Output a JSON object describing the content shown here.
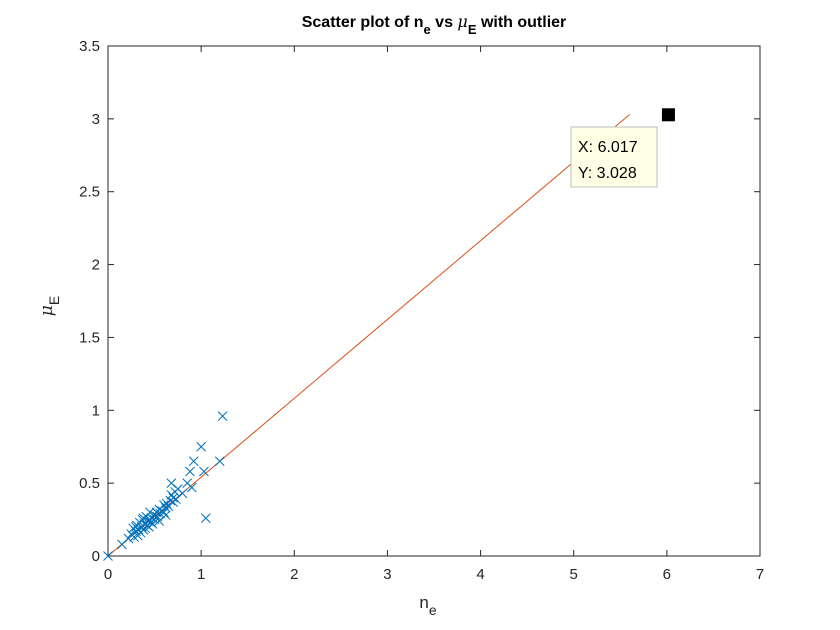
{
  "chart_data": {
    "type": "scatter",
    "title": "Scatter plot of n_e vs μ_E with outlier",
    "xlabel": "n_e",
    "ylabel": "μ_E",
    "xlim": [
      0,
      7
    ],
    "ylim": [
      0,
      3.5
    ],
    "xticks": [
      "0",
      "1",
      "2",
      "3",
      "4",
      "5",
      "6",
      "7"
    ],
    "yticks": [
      "0",
      "0.5",
      "1",
      "1.5",
      "2",
      "2.5",
      "3",
      "3.5"
    ],
    "grid": false,
    "marker_color": "#0072BD",
    "line_color": "#D95319",
    "outlier_color": "#000000",
    "series": [
      {
        "marker": "x",
        "points": [
          [
            0.0,
            0.0
          ],
          [
            0.15,
            0.08
          ],
          [
            0.22,
            0.12
          ],
          [
            0.25,
            0.15
          ],
          [
            0.27,
            0.19
          ],
          [
            0.28,
            0.13
          ],
          [
            0.3,
            0.17
          ],
          [
            0.31,
            0.21
          ],
          [
            0.32,
            0.14
          ],
          [
            0.33,
            0.18
          ],
          [
            0.34,
            0.23
          ],
          [
            0.35,
            0.16
          ],
          [
            0.36,
            0.2
          ],
          [
            0.37,
            0.25
          ],
          [
            0.38,
            0.18
          ],
          [
            0.39,
            0.22
          ],
          [
            0.4,
            0.19
          ],
          [
            0.41,
            0.27
          ],
          [
            0.42,
            0.21
          ],
          [
            0.43,
            0.24
          ],
          [
            0.44,
            0.2
          ],
          [
            0.45,
            0.3
          ],
          [
            0.46,
            0.23
          ],
          [
            0.47,
            0.26
          ],
          [
            0.48,
            0.22
          ],
          [
            0.5,
            0.28
          ],
          [
            0.5,
            0.25
          ],
          [
            0.52,
            0.3
          ],
          [
            0.53,
            0.27
          ],
          [
            0.55,
            0.32
          ],
          [
            0.56,
            0.29
          ],
          [
            0.58,
            0.31
          ],
          [
            0.6,
            0.35
          ],
          [
            0.6,
            0.3
          ],
          [
            0.62,
            0.33
          ],
          [
            0.63,
            0.36
          ],
          [
            0.65,
            0.34
          ],
          [
            0.67,
            0.38
          ],
          [
            0.68,
            0.42
          ],
          [
            0.7,
            0.4
          ],
          [
            0.7,
            0.37
          ],
          [
            0.72,
            0.44
          ],
          [
            0.73,
            0.39
          ],
          [
            0.75,
            0.46
          ],
          [
            0.68,
            0.5
          ],
          [
            0.85,
            0.5
          ],
          [
            0.88,
            0.58
          ],
          [
            0.9,
            0.47
          ],
          [
            0.92,
            0.65
          ],
          [
            1.0,
            0.75
          ],
          [
            1.05,
            0.26
          ],
          [
            1.2,
            0.65
          ],
          [
            1.23,
            0.96
          ],
          [
            1.03,
            0.58
          ],
          [
            0.62,
            0.28
          ],
          [
            0.8,
            0.43
          ],
          [
            0.45,
            0.25
          ],
          [
            0.55,
            0.24
          ],
          [
            0.38,
            0.26
          ],
          [
            0.3,
            0.2
          ]
        ]
      },
      {
        "name": "outlier",
        "marker": "square",
        "points": [
          [
            6.017,
            3.028
          ]
        ]
      }
    ],
    "fit_line": {
      "x": [
        0,
        5.6
      ],
      "y": [
        0,
        3.03
      ]
    },
    "datatip": {
      "x_text": "X: 6.017",
      "y_text": "Y: 3.028"
    }
  }
}
